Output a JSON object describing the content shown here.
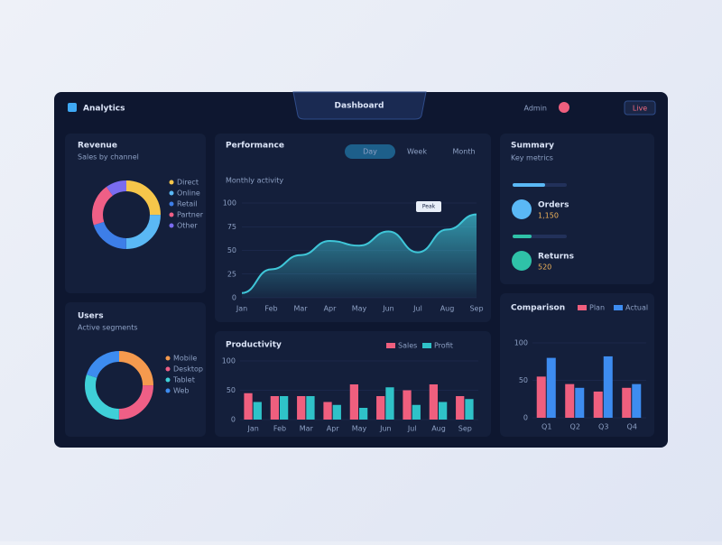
{
  "header": {
    "brand": "Analytics",
    "title": "Dashboard",
    "user": "Admin",
    "badge": "Live"
  },
  "donut_top": {
    "title": "Revenue",
    "subtitle": "Sales by channel",
    "segments": [
      {
        "name": "Direct",
        "color": "#f6c64a",
        "value": 25
      },
      {
        "name": "Online",
        "color": "#5ab8f5",
        "value": 25
      },
      {
        "name": "Retail",
        "color": "#3d7ee8",
        "value": 20
      },
      {
        "name": "Partner",
        "color": "#ef5f86",
        "value": 20
      },
      {
        "name": "Other",
        "color": "#7a6cf0",
        "value": 10
      }
    ]
  },
  "donut_bottom": {
    "title": "Users",
    "subtitle": "Active segments",
    "segments": [
      {
        "name": "Mobile",
        "color": "#f59a4e",
        "value": 25
      },
      {
        "name": "Desktop",
        "color": "#ef5f86",
        "value": 25
      },
      {
        "name": "Tablet",
        "color": "#3fd0d8",
        "value": 30
      },
      {
        "name": "Web",
        "color": "#3d8cf0",
        "value": 20
      }
    ]
  },
  "area": {
    "title": "Performance",
    "subtitle": "Monthly activity",
    "tabs": [
      "Day",
      "Week",
      "Month"
    ],
    "annotation": "Peak",
    "categories": [
      "Jan",
      "Feb",
      "Mar",
      "Apr",
      "May",
      "Jun",
      "Jul",
      "Aug",
      "Sep"
    ],
    "values": [
      5,
      30,
      45,
      60,
      55,
      70,
      48,
      72,
      88
    ],
    "color": "#3fc6d8",
    "ylim": [
      0,
      100
    ],
    "yticks": [
      0,
      25,
      50,
      75,
      100
    ]
  },
  "bars": {
    "title": "Productivity",
    "categories": [
      "Jan",
      "Feb",
      "Mar",
      "Apr",
      "May",
      "Jun",
      "Jul",
      "Aug",
      "Sep"
    ],
    "series": [
      {
        "name": "Sales",
        "color": "#ef5f7e",
        "values": [
          45,
          40,
          40,
          30,
          60,
          40,
          50,
          60,
          40
        ]
      },
      {
        "name": "Profit",
        "color": "#2fc2c8",
        "values": [
          30,
          40,
          40,
          25,
          20,
          55,
          25,
          30,
          35
        ]
      }
    ],
    "ylim": [
      0,
      100
    ],
    "yticks": [
      0,
      50,
      100
    ]
  },
  "list": {
    "title": "Summary",
    "subtitle": "Key metrics",
    "items": [
      {
        "label": "Orders",
        "value": "1,150",
        "color": "#5ab8f5",
        "progress": 60
      },
      {
        "label": "Returns",
        "value": "520",
        "color": "#2fc2a8",
        "progress": 35
      }
    ]
  },
  "bars2": {
    "title": "Comparison",
    "categories": [
      "Q1",
      "Q2",
      "Q3",
      "Q4"
    ],
    "series": [
      {
        "name": "Plan",
        "color": "#ef5f7e",
        "values": [
          55,
          45,
          35,
          40
        ]
      },
      {
        "name": "Actual",
        "color": "#3d8cf0",
        "values": [
          80,
          40,
          82,
          45
        ]
      }
    ],
    "ylim": [
      0,
      100
    ],
    "yticks": [
      0,
      50,
      100
    ]
  }
}
